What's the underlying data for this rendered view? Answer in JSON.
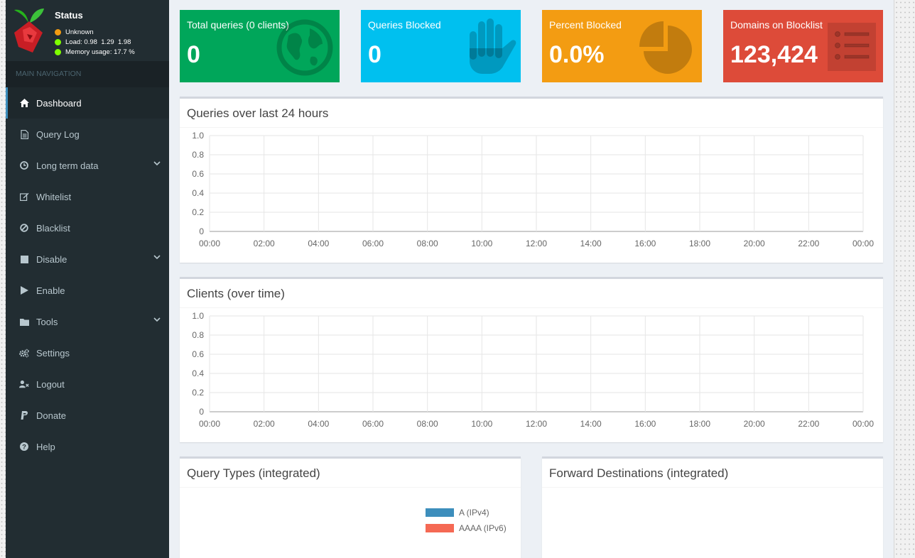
{
  "status": {
    "title": "Status",
    "state": "Unknown",
    "load_label": "Load:",
    "load_values": "0.98  1.29  1.98",
    "memory_label": "Memory usage:",
    "memory_value": "17.7 %",
    "colors": {
      "state": "#f39c12",
      "ok": "#7fff00"
    }
  },
  "sidebar": {
    "header": "MAIN NAVIGATION",
    "items": [
      {
        "label": "Dashboard",
        "icon": "home-icon",
        "active": true
      },
      {
        "label": "Query Log",
        "icon": "file-icon"
      },
      {
        "label": "Long term data",
        "icon": "clock-icon",
        "expandable": true
      },
      {
        "label": "Whitelist",
        "icon": "edit-icon"
      },
      {
        "label": "Blacklist",
        "icon": "ban-icon"
      },
      {
        "label": "Disable",
        "icon": "stop-icon",
        "expandable": true
      },
      {
        "label": "Enable",
        "icon": "play-icon"
      },
      {
        "label": "Tools",
        "icon": "folder-icon",
        "expandable": true
      },
      {
        "label": "Settings",
        "icon": "gears-icon"
      },
      {
        "label": "Logout",
        "icon": "user-times-icon"
      },
      {
        "label": "Donate",
        "icon": "paypal-icon"
      },
      {
        "label": "Help",
        "icon": "question-icon"
      }
    ]
  },
  "stats": [
    {
      "label": "Total queries (0 clients)",
      "value": "0",
      "color": "#00a65a",
      "icon": "globe-icon"
    },
    {
      "label": "Queries Blocked",
      "value": "0",
      "color": "#00c0ef",
      "icon": "hand-icon"
    },
    {
      "label": "Percent Blocked",
      "value": "0.0%",
      "color": "#f39c12",
      "icon": "pie-chart-icon"
    },
    {
      "label": "Domains on Blocklist",
      "value": "123,424",
      "color": "#dd4b39",
      "icon": "list-icon"
    }
  ],
  "panels": {
    "queries_title": "Queries over last 24 hours",
    "clients_title": "Clients (over time)",
    "query_types_title": "Query Types (integrated)",
    "forward_title": "Forward Destinations (integrated)"
  },
  "chart_data": [
    {
      "type": "line",
      "x_ticks": [
        "00:00",
        "02:00",
        "04:00",
        "06:00",
        "08:00",
        "10:00",
        "12:00",
        "14:00",
        "16:00",
        "18:00",
        "20:00",
        "22:00",
        "00:00"
      ],
      "y_ticks": [
        "0",
        "0.2",
        "0.4",
        "0.6",
        "0.8",
        "1.0"
      ],
      "ylim": [
        0,
        1.0
      ],
      "series": [],
      "grid": true
    },
    {
      "type": "line",
      "x_ticks": [
        "00:00",
        "02:00",
        "04:00",
        "06:00",
        "08:00",
        "10:00",
        "12:00",
        "14:00",
        "16:00",
        "18:00",
        "20:00",
        "22:00",
        "00:00"
      ],
      "y_ticks": [
        "0",
        "0.2",
        "0.4",
        "0.6",
        "0.8",
        "1.0"
      ],
      "ylim": [
        0,
        1.0
      ],
      "series": [],
      "grid": true
    },
    {
      "type": "pie",
      "legend": [
        {
          "name": "A (IPv4)",
          "color": "#3d8ebc"
        },
        {
          "name": "AAAA (IPv6)",
          "color": "#f56954"
        }
      ],
      "values": []
    }
  ]
}
